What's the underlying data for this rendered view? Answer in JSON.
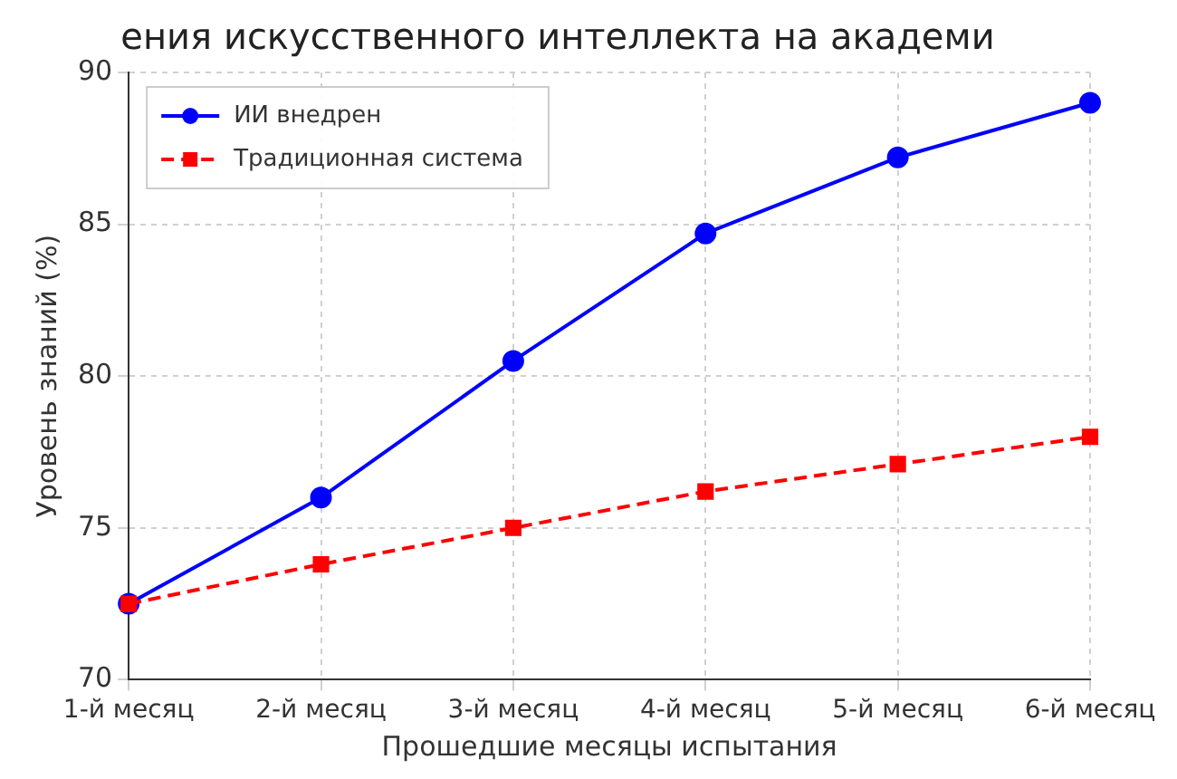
{
  "chart_data": {
    "type": "line",
    "title": "ения искусственного интеллекта на академи",
    "xlabel": "Прошедшие месяцы испытания",
    "ylabel": "Уровень знаний (%)",
    "categories": [
      "1-й месяц",
      "2-й месяц",
      "3-й месяц",
      "4-й месяц",
      "5-й месяц",
      "6-й месяц"
    ],
    "series": [
      {
        "name": "ИИ внедрен",
        "color": "#0000ff",
        "values": [
          72.5,
          76.0,
          80.5,
          84.7,
          87.2,
          89.0
        ],
        "marker": "circle",
        "line_style": "solid"
      },
      {
        "name": "Традиционная система",
        "color": "#ff0000",
        "values": [
          72.5,
          73.8,
          75.0,
          76.2,
          77.1,
          78.0
        ],
        "marker": "square",
        "line_style": "dashed"
      }
    ],
    "ylim": [
      70,
      90
    ],
    "yticks": [
      70,
      75,
      80,
      85,
      90
    ],
    "grid": true,
    "legend": "top left"
  }
}
